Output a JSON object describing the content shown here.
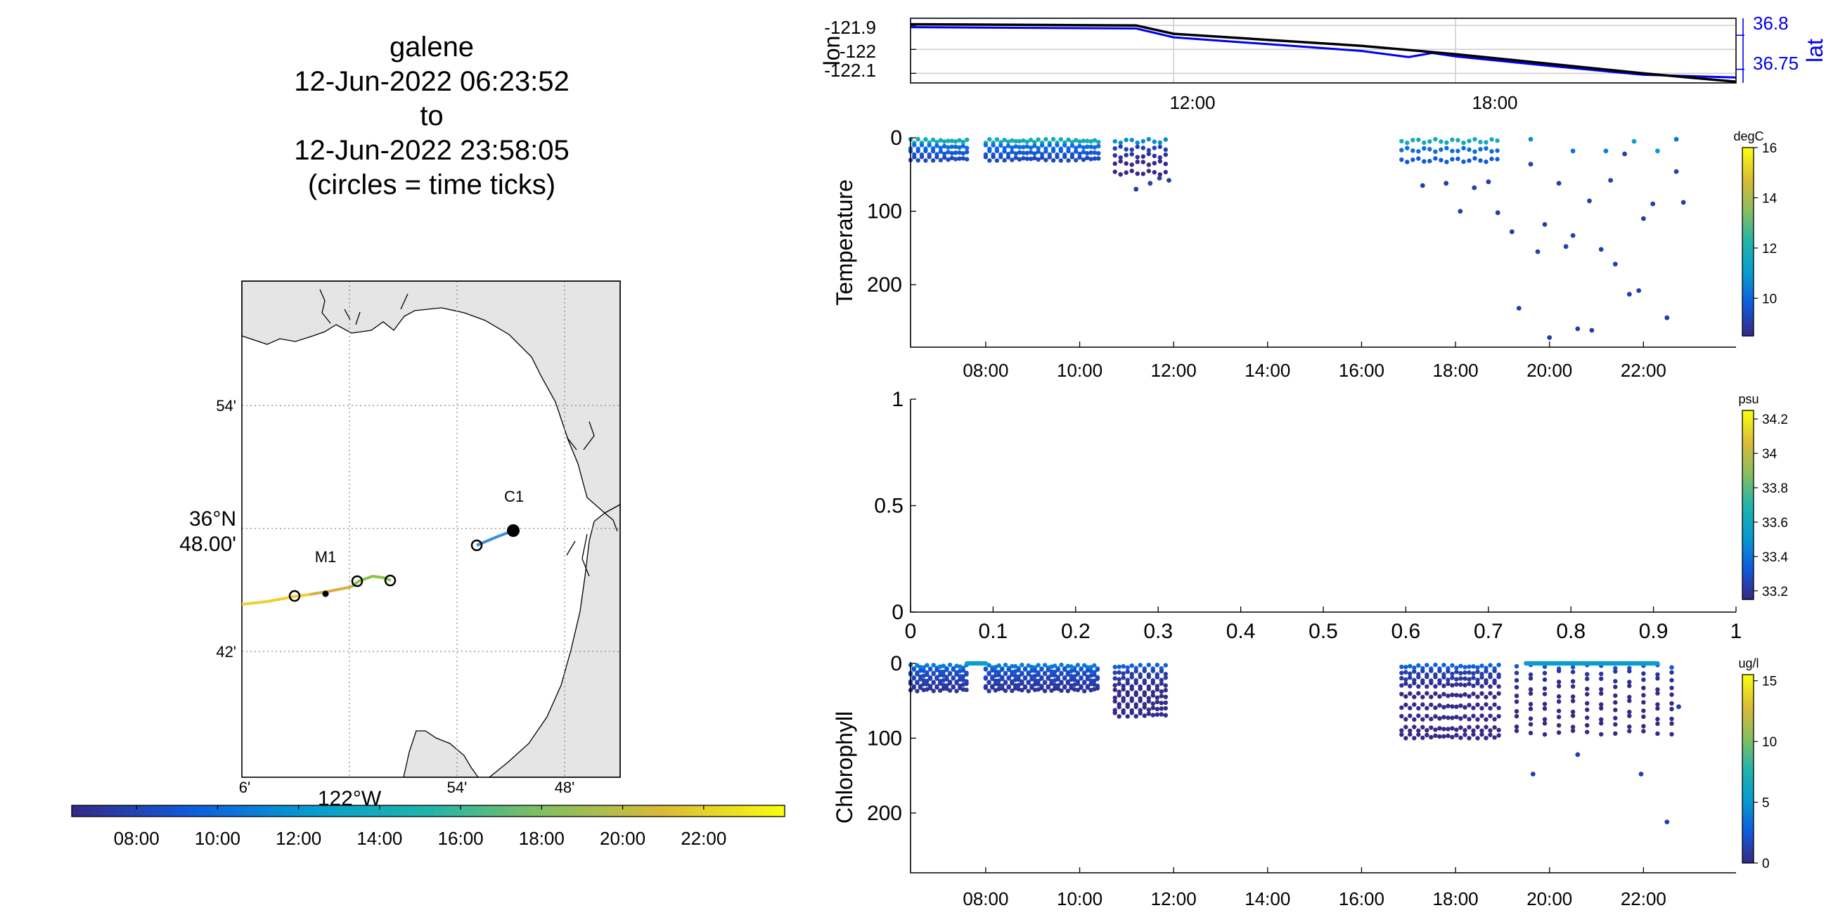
{
  "map_panel": {
    "title_lines": [
      "galene",
      "12-Jun-2022 06:23:52",
      "to",
      "12-Jun-2022 23:58:05",
      "(circles = time ticks)"
    ],
    "lat_labels": [
      "54'",
      "42'"
    ],
    "lat_main": [
      "36°N",
      "48.00'"
    ],
    "lon_labels": [
      "6'",
      "54'",
      "48'"
    ],
    "lon_main": "122°W",
    "stations": [
      "C1",
      "M1"
    ],
    "land_color": "#e5e5e5",
    "time_colorbar": {
      "ticks": [
        "08:00",
        "10:00",
        "12:00",
        "14:00",
        "16:00",
        "18:00",
        "20:00",
        "22:00"
      ],
      "range_hours": [
        6.4,
        24.0
      ]
    }
  },
  "chart_data": [
    {
      "type": "line",
      "name": "position",
      "xlabel": "",
      "ylabel": "lon",
      "ylabel_right": "lat",
      "xticks": [
        "12:00",
        "18:00"
      ],
      "xlim_hours": [
        6.4,
        23.97
      ],
      "yticks_left": [
        "-121.9",
        "-122",
        "-122.1"
      ],
      "yticks_right": [
        "36.8",
        "36.75"
      ],
      "grid": true,
      "series": [
        {
          "name": "lon",
          "color": "#000000",
          "x": [
            6.4,
            11.2,
            12.0,
            14.0,
            16.0,
            18.0,
            20.0,
            22.0,
            24.0
          ],
          "y": [
            -121.895,
            -121.9,
            -121.935,
            -121.96,
            -121.985,
            -122.02,
            -122.06,
            -122.1,
            -122.135
          ]
        },
        {
          "name": "lat",
          "color": "#0000ee",
          "x": [
            6.4,
            11.2,
            12.0,
            14.0,
            16.0,
            17.0,
            17.5,
            18.0,
            20.0,
            22.0,
            24.0
          ],
          "y": [
            36.812,
            36.81,
            36.797,
            36.787,
            36.777,
            36.768,
            36.774,
            36.769,
            36.755,
            36.742,
            36.738
          ]
        }
      ]
    },
    {
      "type": "scatter",
      "name": "temperature",
      "xlabel": "",
      "ylabel": "Temperature",
      "unit": "degC",
      "yticks": [
        "0",
        "100",
        "200"
      ],
      "ylim": [
        0,
        285
      ],
      "y_reversed": true,
      "xticks": [
        "08:00",
        "10:00",
        "12:00",
        "14:00",
        "16:00",
        "18:00",
        "20:00",
        "22:00"
      ],
      "xlim_hours": [
        6.4,
        23.97
      ],
      "colorbar": {
        "ticks": [
          "16",
          "14",
          "12",
          "10"
        ],
        "range": [
          8.5,
          16
        ]
      },
      "casts": [
        {
          "t0": 6.4,
          "t1": 7.6,
          "dt": 0.08,
          "depths": [
            2,
            10,
            18,
            26
          ],
          "color_value": 10.5
        },
        {
          "t0": 8.0,
          "t1": 10.4,
          "dt": 0.08,
          "depths": [
            2,
            10,
            18,
            26
          ],
          "color_value": 10.5
        },
        {
          "t0": 10.75,
          "t1": 11.9,
          "dt": 0.12,
          "depths": [
            2,
            12,
            22,
            32,
            45
          ],
          "color_value": 9.5
        },
        {
          "t0": 16.85,
          "t1": 19.0,
          "dt": 0.12,
          "depths": [
            2,
            14,
            28
          ],
          "color_value": 10.5
        }
      ],
      "points": [
        {
          "t": 11.2,
          "d": 70,
          "v": 9
        },
        {
          "t": 11.5,
          "d": 62,
          "v": 9
        },
        {
          "t": 11.7,
          "d": 55,
          "v": 9
        },
        {
          "t": 11.9,
          "d": 58,
          "v": 9
        },
        {
          "t": 17.3,
          "d": 65,
          "v": 9
        },
        {
          "t": 17.8,
          "d": 62,
          "v": 9
        },
        {
          "t": 18.1,
          "d": 100,
          "v": 9
        },
        {
          "t": 18.4,
          "d": 68,
          "v": 9
        },
        {
          "t": 18.7,
          "d": 60,
          "v": 9
        },
        {
          "t": 18.9,
          "d": 102,
          "v": 9
        },
        {
          "t": 19.2,
          "d": 128,
          "v": 9
        },
        {
          "t": 19.35,
          "d": 232,
          "v": 9
        },
        {
          "t": 19.6,
          "d": 36,
          "v": 9
        },
        {
          "t": 19.75,
          "d": 155,
          "v": 9
        },
        {
          "t": 19.9,
          "d": 118,
          "v": 9
        },
        {
          "t": 20.0,
          "d": 272,
          "v": 9
        },
        {
          "t": 20.2,
          "d": 62,
          "v": 9
        },
        {
          "t": 20.35,
          "d": 148,
          "v": 9
        },
        {
          "t": 20.5,
          "d": 133,
          "v": 9
        },
        {
          "t": 20.6,
          "d": 260,
          "v": 9
        },
        {
          "t": 20.85,
          "d": 86,
          "v": 9
        },
        {
          "t": 20.9,
          "d": 262,
          "v": 9
        },
        {
          "t": 21.1,
          "d": 152,
          "v": 9
        },
        {
          "t": 21.3,
          "d": 58,
          "v": 9
        },
        {
          "t": 21.4,
          "d": 172,
          "v": 9
        },
        {
          "t": 21.6,
          "d": 22,
          "v": 9
        },
        {
          "t": 21.7,
          "d": 213,
          "v": 9
        },
        {
          "t": 21.9,
          "d": 208,
          "v": 9
        },
        {
          "t": 22.0,
          "d": 110,
          "v": 9
        },
        {
          "t": 22.2,
          "d": 90,
          "v": 9
        },
        {
          "t": 22.5,
          "d": 245,
          "v": 9
        },
        {
          "t": 22.7,
          "d": 46,
          "v": 9
        },
        {
          "t": 22.85,
          "d": 88,
          "v": 9
        },
        {
          "t": 20.5,
          "d": 18,
          "v": 10.2
        },
        {
          "t": 21.2,
          "d": 18,
          "v": 10.5
        },
        {
          "t": 21.8,
          "d": 5,
          "v": 11.5
        },
        {
          "t": 22.3,
          "d": 18,
          "v": 11
        },
        {
          "t": 19.6,
          "d": 2,
          "v": 10.8
        },
        {
          "t": 22.7,
          "d": 2,
          "v": 10.2
        }
      ]
    },
    {
      "type": "scatter",
      "name": "salinity",
      "xlabel": "",
      "ylabel": "",
      "unit": "psu",
      "xticks": [
        "0",
        "0.1",
        "0.2",
        "0.3",
        "0.4",
        "0.5",
        "0.6",
        "0.7",
        "0.8",
        "0.9",
        "1"
      ],
      "yticks": [
        "1",
        "0.5",
        "0"
      ],
      "xlim": [
        0,
        1
      ],
      "ylim": [
        0,
        1
      ],
      "colorbar": {
        "ticks": [
          "34.2",
          "34",
          "33.8",
          "33.6",
          "33.4",
          "33.2"
        ],
        "range": [
          33.15,
          34.25
        ]
      },
      "points": []
    },
    {
      "type": "scatter",
      "name": "chlorophyll",
      "xlabel": "",
      "ylabel": "Chlorophyll",
      "unit": "ug/l",
      "yticks": [
        "0",
        "100",
        "200"
      ],
      "ylim": [
        0,
        280
      ],
      "y_reversed": true,
      "xticks": [
        "08:00",
        "10:00",
        "12:00",
        "14:00",
        "16:00",
        "18:00",
        "20:00",
        "22:00"
      ],
      "xlim_hours": [
        6.4,
        23.97
      ],
      "colorbar": {
        "ticks": [
          "15",
          "10",
          "5",
          "0"
        ],
        "range": [
          0,
          15.5
        ]
      },
      "casts": [
        {
          "t0": 6.4,
          "t1": 7.6,
          "dt": 0.07,
          "depths": [
            2,
            8,
            14,
            20,
            26,
            32
          ],
          "color_value": 2.5
        },
        {
          "t0": 8.0,
          "t1": 10.4,
          "dt": 0.07,
          "depths": [
            2,
            8,
            14,
            20,
            26,
            32
          ],
          "color_value": 2.5
        },
        {
          "t0": 10.75,
          "t1": 11.9,
          "dt": 0.09,
          "depths": [
            2,
            10,
            18,
            26,
            34,
            42,
            50,
            58,
            66
          ],
          "color_value": 1.5
        },
        {
          "t0": 16.85,
          "t1": 19.0,
          "dt": 0.09,
          "depths": [
            2,
            10,
            18,
            26,
            40,
            55,
            70,
            85,
            95
          ],
          "color_value": 1.5
        },
        {
          "t0": 19.3,
          "t1": 22.6,
          "dt": 0.3,
          "depths": [
            2,
            10,
            20,
            30,
            40,
            50,
            60,
            70,
            80,
            90
          ],
          "color_value": 1.0
        }
      ],
      "points": [
        {
          "t": 19.65,
          "d": 148,
          "v": 1
        },
        {
          "t": 20.6,
          "d": 122,
          "v": 1
        },
        {
          "t": 21.95,
          "d": 148,
          "v": 1
        },
        {
          "t": 22.5,
          "d": 212,
          "v": 1
        },
        {
          "t": 22.75,
          "d": 58,
          "v": 1
        }
      ],
      "surface_line": [
        {
          "t0": 7.6,
          "t1": 8.0,
          "d": 0,
          "v": 5.5
        },
        {
          "t0": 19.5,
          "t1": 22.3,
          "d": 0,
          "v": 5.5
        }
      ]
    }
  ]
}
